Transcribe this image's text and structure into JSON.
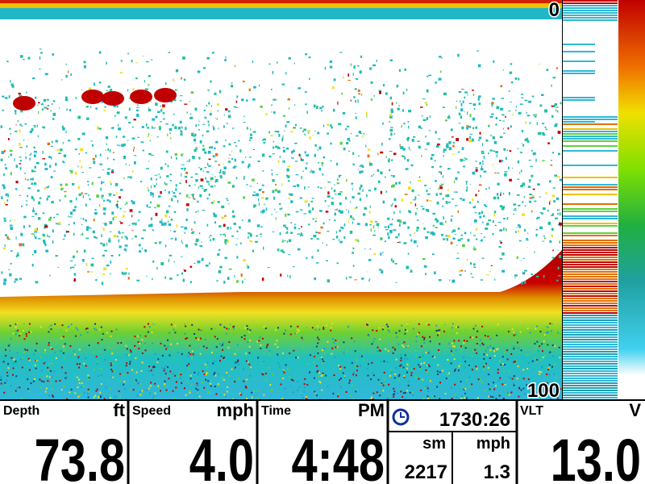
{
  "sonar": {
    "depth_top": "0",
    "depth_bottom": "100"
  },
  "panels": [
    {
      "label": "Depth",
      "unit": "ft",
      "value": "73.8"
    },
    {
      "label": "Speed",
      "unit": "mph",
      "value": "4.0"
    },
    {
      "label": "Time",
      "unit": "PM",
      "value": "4:48"
    }
  ],
  "trip": {
    "clock": "1730:26",
    "distance_unit": "sm",
    "speed_unit": "mph",
    "distance": "2217",
    "speed": "1.3"
  },
  "voltage": {
    "label": "VLT",
    "unit": "V",
    "value": "13.0"
  }
}
